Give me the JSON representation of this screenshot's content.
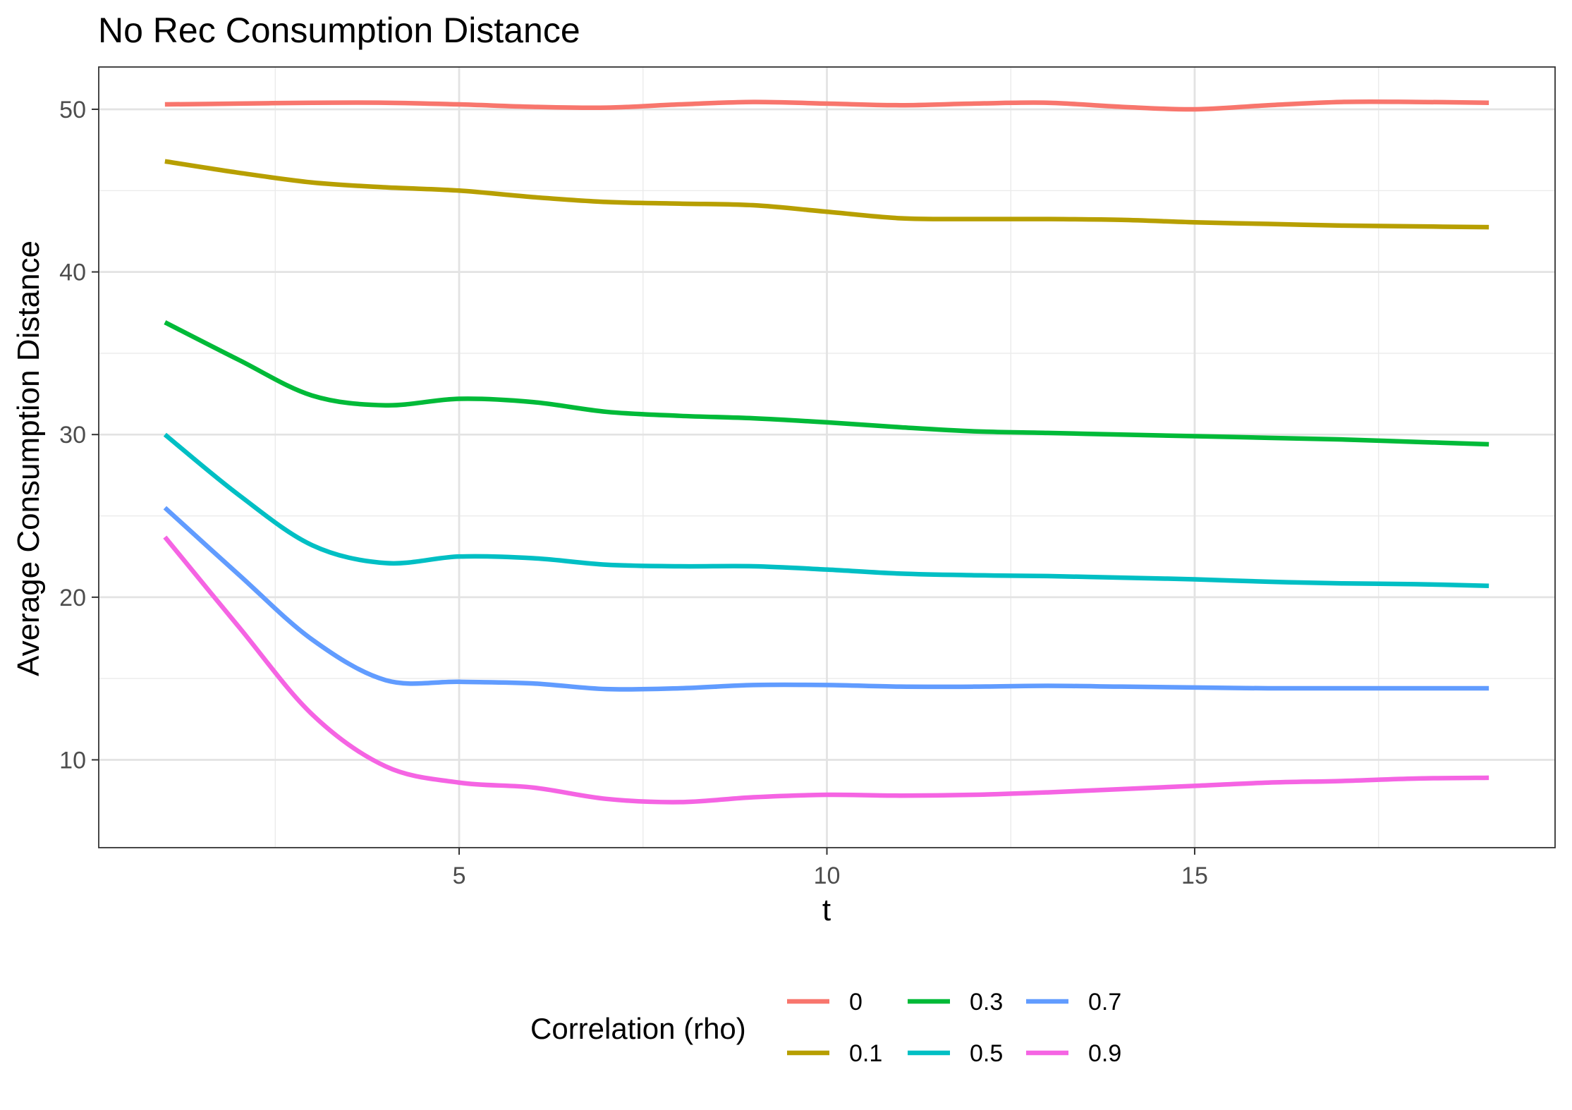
{
  "chart_data": {
    "type": "line",
    "title": "No Rec Consumption Distance",
    "xlabel": "t",
    "ylabel": "Average Consumption Distance",
    "xlim": [
      0.1,
      19.9
    ],
    "ylim": [
      4.6,
      52.6
    ],
    "x_ticks": [
      5,
      10,
      15
    ],
    "x_minor_ticks": [
      2.5,
      7.5,
      12.5,
      17.5
    ],
    "y_ticks": [
      10,
      20,
      30,
      40,
      50
    ],
    "y_minor_ticks": [
      15,
      25,
      35,
      45
    ],
    "x_tick_labels": [
      "5",
      "10",
      "15"
    ],
    "y_tick_labels": [
      "10",
      "20",
      "30",
      "40",
      "50"
    ],
    "grid": true,
    "legend": {
      "title": "Correlation (rho)",
      "position": "bottom",
      "layout": "2 rows x 3 columns, filled by column"
    },
    "x": [
      1,
      2,
      3,
      4,
      5,
      6,
      7,
      8,
      9,
      10,
      11,
      12,
      13,
      14,
      15,
      16,
      17,
      18,
      19
    ],
    "series": [
      {
        "name": "0",
        "color": "#F8766D",
        "values": [
          50.3,
          50.35,
          50.4,
          50.4,
          50.3,
          50.15,
          50.1,
          50.3,
          50.45,
          50.35,
          50.25,
          50.35,
          50.4,
          50.15,
          50.0,
          50.25,
          50.45,
          50.45,
          50.4
        ]
      },
      {
        "name": "0.1",
        "color": "#B79F00",
        "values": [
          46.8,
          46.1,
          45.5,
          45.2,
          45.0,
          44.6,
          44.3,
          44.2,
          44.1,
          43.7,
          43.3,
          43.25,
          43.25,
          43.2,
          43.05,
          42.95,
          42.85,
          42.8,
          42.75
        ]
      },
      {
        "name": "0.3",
        "color": "#00BA38",
        "values": [
          36.9,
          34.6,
          32.4,
          31.8,
          32.2,
          32.0,
          31.4,
          31.15,
          31.0,
          30.75,
          30.45,
          30.2,
          30.1,
          30.0,
          29.9,
          29.8,
          29.7,
          29.55,
          29.4
        ]
      },
      {
        "name": "0.5",
        "color": "#00BFC4",
        "values": [
          30.0,
          26.3,
          23.2,
          22.1,
          22.5,
          22.4,
          22.0,
          21.9,
          21.9,
          21.7,
          21.45,
          21.35,
          21.3,
          21.2,
          21.1,
          20.95,
          20.85,
          20.8,
          20.7
        ]
      },
      {
        "name": "0.7",
        "color": "#619CFF",
        "values": [
          25.5,
          21.4,
          17.4,
          14.9,
          14.8,
          14.7,
          14.35,
          14.4,
          14.6,
          14.6,
          14.5,
          14.5,
          14.55,
          14.5,
          14.45,
          14.4,
          14.4,
          14.4,
          14.4
        ]
      },
      {
        "name": "0.9",
        "color": "#F564E3",
        "values": [
          23.7,
          18.2,
          12.8,
          9.6,
          8.6,
          8.3,
          7.6,
          7.4,
          7.7,
          7.85,
          7.8,
          7.85,
          8.0,
          8.2,
          8.4,
          8.6,
          8.7,
          8.85,
          8.9
        ]
      }
    ]
  }
}
